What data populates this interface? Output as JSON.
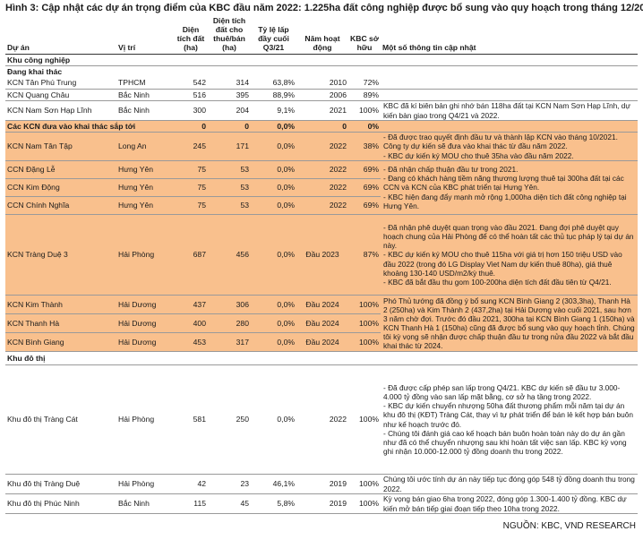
{
  "title": "Hình 3: Cập nhật các dự án trọng điểm của KBC đầu năm 2022: 1.225ha đất công nghiệp được bổ sung vào quy hoạch trong tháng 12/2021",
  "headers": {
    "project": "Dự án",
    "location": "Vị trí",
    "area_total": "Diện tích đất (ha)",
    "area_remaining": "Diện tích đất cho thuê/bán (ha)",
    "fill_rate": "Tỷ lệ lấp đầy cuối Q3/21",
    "year": "Năm hoạt động",
    "ownership": "KBC sở hữu",
    "notes": "Một số thông tin cập nhật"
  },
  "sections": {
    "industrial": "Khu công nghiệp",
    "operating": "Đang khai thác",
    "upcoming": {
      "label": "Các KCN đưa vào khai thác sắp tới",
      "area_total": "0",
      "area_remaining": "0",
      "fill_rate": "0,0%",
      "year": "0",
      "ownership": "0%"
    },
    "urban": "Khu đô thị"
  },
  "operating_rows": [
    {
      "name": "KCN Tân Phú Trung",
      "location": "TPHCM",
      "area_total": "542",
      "area_remaining": "314",
      "fill_rate": "63,8%",
      "year": "2010",
      "ownership": "72%",
      "note": ""
    },
    {
      "name": "KCN Quang Châu",
      "location": "Bắc Ninh",
      "area_total": "516",
      "area_remaining": "395",
      "fill_rate": "88,9%",
      "year": "2006",
      "ownership": "89%",
      "note": ""
    },
    {
      "name": "KCN Nam Sơn Hạp Lĩnh",
      "location": "Bắc Ninh",
      "area_total": "300",
      "area_remaining": "204",
      "fill_rate": "9,1%",
      "year": "2021",
      "ownership": "100%",
      "note": "KBC đã kí biên bản ghi nhớ bán 118ha đất tại KCN Nam Sơn Hạp Lĩnh, dự kiến bàn giao trong Q4/21 và 2022."
    }
  ],
  "upcoming_rows": [
    {
      "name": "KCN Nam Tân Tập",
      "location": "Long An",
      "area_total": "245",
      "area_remaining": "171",
      "fill_rate": "0,0%",
      "year": "2022",
      "ownership": "38%"
    },
    {
      "name": "CCN Đặng Lễ",
      "location": "Hưng Yên",
      "area_total": "75",
      "area_remaining": "53",
      "fill_rate": "0,0%",
      "year": "2022",
      "ownership": "69%"
    },
    {
      "name": "CCN Kim Động",
      "location": "Hưng Yên",
      "area_total": "75",
      "area_remaining": "53",
      "fill_rate": "0,0%",
      "year": "2022",
      "ownership": "69%"
    },
    {
      "name": "CCN Chính Nghĩa",
      "location": "Hưng Yên",
      "area_total": "75",
      "area_remaining": "53",
      "fill_rate": "0,0%",
      "year": "2022",
      "ownership": "69%"
    },
    {
      "name": "KCN Tràng Duệ 3",
      "location": "Hải Phòng",
      "area_total": "687",
      "area_remaining": "456",
      "fill_rate": "0,0%",
      "year": "Đầu 2023",
      "ownership": "87%"
    },
    {
      "name": "KCN Kim Thành",
      "location": "Hải Dương",
      "area_total": "437",
      "area_remaining": "306",
      "fill_rate": "0,0%",
      "year": "Đầu 2024",
      "ownership": "100%"
    },
    {
      "name": "KCN Thanh Hà",
      "location": "Hải Dương",
      "area_total": "400",
      "area_remaining": "280",
      "fill_rate": "0,0%",
      "year": "Đầu 2024",
      "ownership": "100%"
    },
    {
      "name": "KCN Bình Giang",
      "location": "Hải Dương",
      "area_total": "453",
      "area_remaining": "317",
      "fill_rate": "0,0%",
      "year": "Đầu 2024",
      "ownership": "100%"
    }
  ],
  "upcoming_notes": {
    "nam_tan_tap": "- Đã được trao quyết định đầu tư và thành lập KCN vào tháng 10/2021. Công ty dự kiến sẽ đưa vào khai thác từ đầu năm 2022.\n- KBC dự kiến ký MOU cho thuê 35ha vào đầu năm 2022.",
    "hung_yen": "- Đã nhận chấp thuận đầu tư trong 2021.\n- Đang có khách hàng tiềm năng thương lượng thuê tại 300ha đất tại các CCN và KCN của KBC phát triển tại Hưng Yên.\n- KBC hiện đang đẩy mạnh mở rộng 1,000ha diện tích đất công nghiệp tại Hưng Yên.",
    "trang_due": "- Đã nhận phê duyệt quan trọng vào đầu 2021. Đang đợi phê duyệt quy hoạch chung của Hải Phòng để có thể hoàn tất các thủ tục pháp lý tại dự án này.\n- KBC dự kiến ký MOU cho thuê 115ha với giá trị hơn 150 triệu USD vào đầu 2022 (trong đó LG Display Viet Nam dự kiến thuê 80ha), giá thuê khoảng 130-140 USD/m2/kỳ thuê.\n- KBC đã bắt đầu thu gom 100-200ha diện tích đất đầu tiên từ Q4/21.",
    "hai_duong": "Phó Thủ tướng đã đồng ý bổ sung KCN Bình Giang 2 (303,3ha), Thanh Hà 2 (250ha) và Kim Thành 2 (437,2ha) tại Hải Dương vào cuối 2021, sau hơn 3 năm chờ đợi. Trước đó đầu 2021, 300ha tại KCN Bình Giang 1 (150ha) và KCN Thanh Hà 1 (150ha) cũng đã được bổ sung vào quy hoạch tỉnh. Chúng tôi kỳ vọng sẽ nhận được chấp thuận đầu tư trong nửa đầu 2022 và bắt đầu khai thác từ 2024."
  },
  "urban_rows": [
    {
      "name": "Khu đô thị Tràng Cát",
      "location": "Hải Phòng",
      "area_total": "581",
      "area_remaining": "250",
      "fill_rate": "0,0%",
      "year": "2022",
      "ownership": "100%",
      "note": "- Đã được cấp phép san lấp trong Q4/21. KBC dự kiến sẽ đầu tư 3.000-4.000 tỷ đồng vào san lấp mặt bằng, cơ sở hạ tầng trong 2022.\n- KBC dự kiến chuyển nhượng 50ha đất thương phẩm mỗi năm tại dự án khu đô thị (KĐT) Tràng Cát, thay vì tự phát triển để bán lẻ kết hợp bán buôn như kế hoạch trước đó.\n- Chúng tôi đánh giá cao kế hoạch bán buôn hoàn toàn này do dự án gần như đã có thể chuyển nhượng sau khi hoàn tất việc san lấp. KBC kỳ vọng ghi nhận 10.000-12.000 tỷ đồng doanh thu trong 2022."
    },
    {
      "name": "Khu đô thị Tràng Duệ",
      "location": "Hải Phòng",
      "area_total": "42",
      "area_remaining": "23",
      "fill_rate": "46,1%",
      "year": "2019",
      "ownership": "100%",
      "note": "Chúng tôi ước tính dự án này tiếp tục đóng góp 548 tỷ đồng doanh thu trong 2022."
    },
    {
      "name": "Khu đô thị Phúc Ninh",
      "location": "Bắc Ninh",
      "area_total": "115",
      "area_remaining": "45",
      "fill_rate": "5,8%",
      "year": "2019",
      "ownership": "100%",
      "note": "Kỳ vọng bán giao 6ha trong 2022, đóng góp 1.300-1.400 tỷ đồng. KBC dự kiến mở bán tiếp giai đoạn tiếp theo 10ha trong 2022."
    }
  ],
  "source": "NGUỒN: KBC, VND RESEARCH",
  "colors": {
    "highlight": "#f9c08d"
  }
}
